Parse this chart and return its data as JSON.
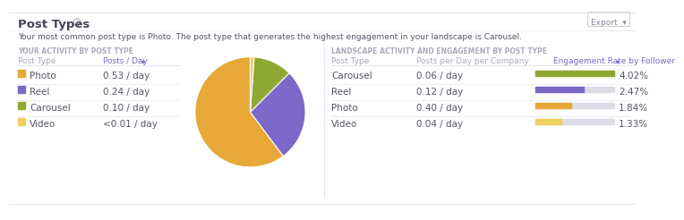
{
  "title": "Post Types",
  "subtitle": "Your most common post type is Photo. The post type that generates the highest engagement in your landscape is Carousel.",
  "section1_title": "YOUR ACTIVITY BY POST TYPE",
  "section2_title": "LANDSCAPE ACTIVITY AND ENGAGEMENT BY POST TYPE",
  "col1_headers": [
    "Post Type",
    "Posts / Day"
  ],
  "col2_headers": [
    "Post Type",
    "Posts per Day per Company",
    "Engagement Rate by Follower"
  ],
  "left_rows": [
    {
      "label": "Photo",
      "value": "0.53 / day",
      "color": "#E8A838"
    },
    {
      "label": "Reel",
      "value": "0.24 / day",
      "color": "#7B68C8"
    },
    {
      "label": "Carousel",
      "value": "0.10 / day",
      "color": "#8FA832"
    },
    {
      "label": "Video",
      "value": "<0.01 / day",
      "color": "#F0D060"
    }
  ],
  "pie_values": [
    0.53,
    0.24,
    0.1,
    0.01
  ],
  "pie_colors": [
    "#E8A838",
    "#7B68C8",
    "#8FA832",
    "#F0D060"
  ],
  "right_rows": [
    {
      "label": "Carousel",
      "ppd": "0.06 / day",
      "pct": 4.02,
      "pct_str": "4.02%",
      "color": "#8FA832"
    },
    {
      "label": "Reel",
      "ppd": "0.12 / day",
      "pct": 2.47,
      "pct_str": "2.47%",
      "color": "#7B68C8"
    },
    {
      "label": "Photo",
      "ppd": "0.40 / day",
      "pct": 1.84,
      "pct_str": "1.84%",
      "color": "#E8A838"
    },
    {
      "label": "Video",
      "ppd": "0.04 / day",
      "pct": 1.33,
      "pct_str": "1.33%",
      "color": "#F0D060"
    }
  ],
  "max_pct": 4.02,
  "bg_color": "#ffffff",
  "text_color_dark": "#555566",
  "text_color_header": "#aaaabb",
  "text_color_title": "#444455",
  "divider_color": "#e5e5ee",
  "bar_bg_color": "#dddde8",
  "export_color": "#888899"
}
